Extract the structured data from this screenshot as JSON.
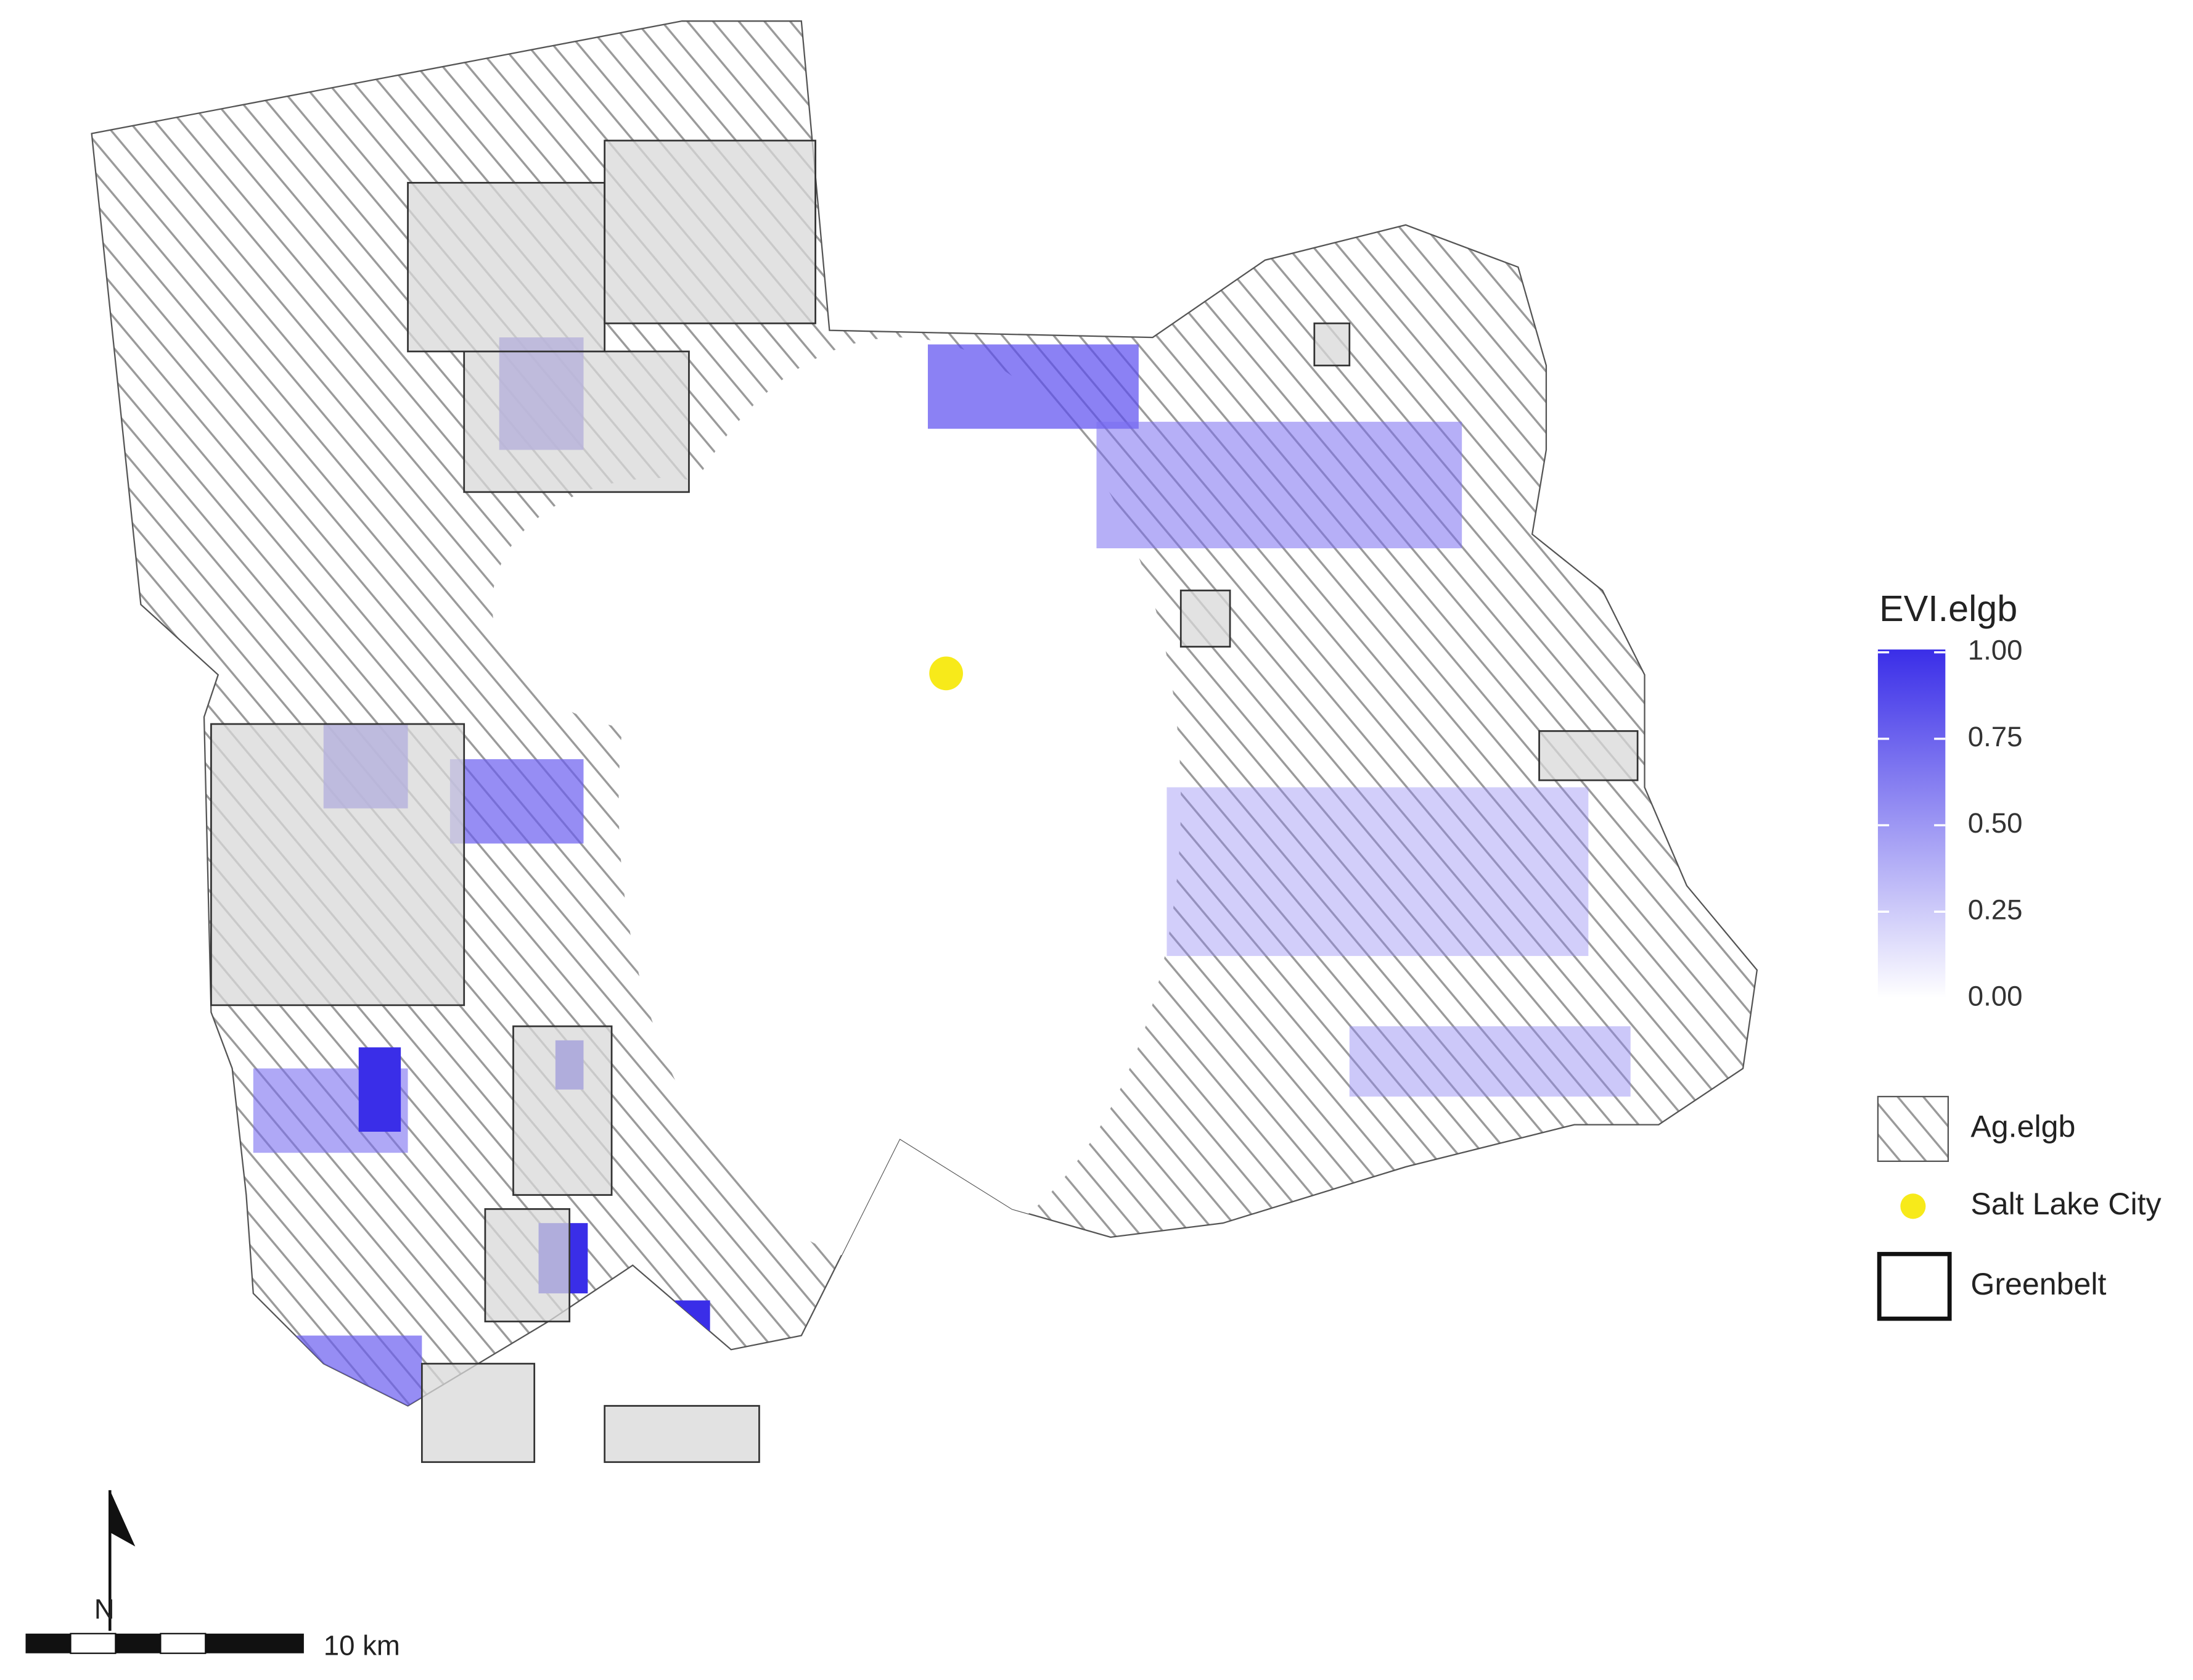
{
  "legend": {
    "title": "EVI.elgb",
    "ticks": [
      {
        "value": 1,
        "label": "1.00"
      },
      {
        "value": 0.75,
        "label": "0.75"
      },
      {
        "value": 0.5,
        "label": "0.50"
      },
      {
        "value": 0.25,
        "label": "0.25"
      },
      {
        "value": 0,
        "label": "0.00"
      }
    ],
    "range": [
      0,
      1
    ],
    "colors": [
      "#ffffff",
      "#3a2ee8"
    ],
    "entries": [
      {
        "label": "Ag.elgb"
      },
      {
        "label": "Salt Lake City"
      },
      {
        "label": "Greenbelt"
      }
    ]
  },
  "scale_bar": {
    "label": "10 km"
  },
  "north_arrow": {
    "label": "N"
  }
}
